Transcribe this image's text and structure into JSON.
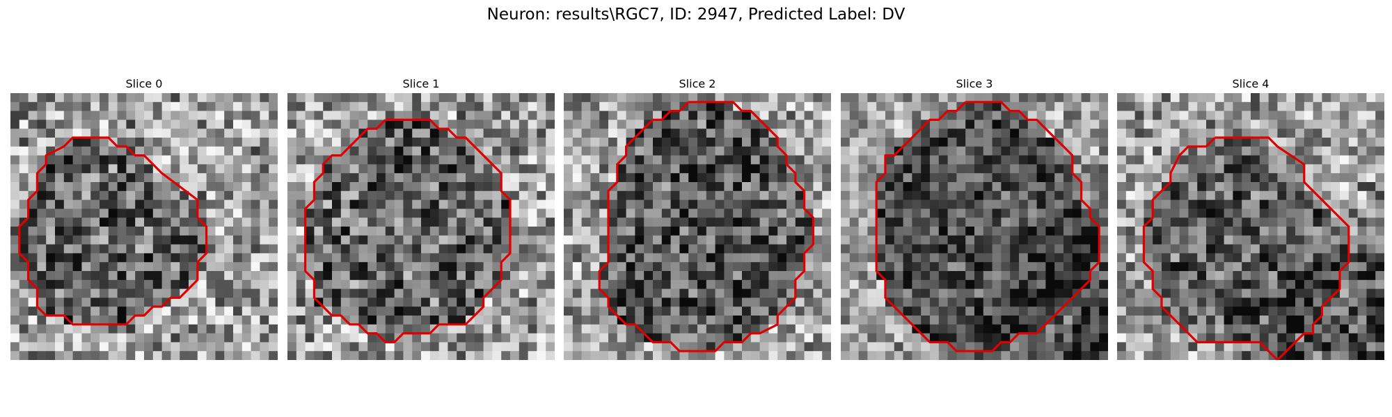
{
  "figure": {
    "title": "Neuron: results\\RGC7, ID: 2947, Predicted Label: DV"
  },
  "colors": {
    "contour": "#e00000",
    "background": "#ffffff"
  },
  "chart_data": [
    {
      "type": "heatmap",
      "title": "Slice 0",
      "grid_size": 30,
      "colormap": "gray",
      "seed": 11,
      "contrast": 0.32,
      "darkening": 0.24,
      "dark_corner": null,
      "contour": [
        [
          8,
          5
        ],
        [
          11,
          5
        ],
        [
          12,
          6
        ],
        [
          13,
          6
        ],
        [
          14,
          7
        ],
        [
          15,
          7
        ],
        [
          16,
          8
        ],
        [
          17,
          9
        ],
        [
          21,
          12
        ],
        [
          21,
          14
        ],
        [
          22,
          15
        ],
        [
          22,
          18
        ],
        [
          21,
          19
        ],
        [
          21,
          21
        ],
        [
          19,
          23
        ],
        [
          18,
          23
        ],
        [
          17,
          24
        ],
        [
          16,
          24
        ],
        [
          15,
          25
        ],
        [
          14,
          25
        ],
        [
          13,
          26
        ],
        [
          7,
          26
        ],
        [
          6,
          25
        ],
        [
          4,
          25
        ],
        [
          3,
          24
        ],
        [
          3,
          22
        ],
        [
          2,
          21
        ],
        [
          2,
          19
        ],
        [
          1,
          18
        ],
        [
          1,
          15
        ],
        [
          2,
          14
        ],
        [
          2,
          12
        ],
        [
          3,
          11
        ],
        [
          3,
          9
        ],
        [
          4,
          8
        ],
        [
          4,
          7
        ],
        [
          6,
          6
        ],
        [
          7,
          5
        ],
        [
          8,
          5
        ]
      ]
    },
    {
      "type": "heatmap",
      "title": "Slice 1",
      "grid_size": 30,
      "colormap": "gray",
      "seed": 23,
      "contrast": 0.32,
      "darkening": 0.22,
      "dark_corner": null,
      "contour": [
        [
          11,
          3
        ],
        [
          16,
          3
        ],
        [
          17,
          4
        ],
        [
          18,
          4
        ],
        [
          19,
          5
        ],
        [
          20,
          5
        ],
        [
          24,
          9
        ],
        [
          24,
          11
        ],
        [
          25,
          12
        ],
        [
          25,
          18
        ],
        [
          24,
          19
        ],
        [
          24,
          21
        ],
        [
          22,
          23
        ],
        [
          22,
          24
        ],
        [
          20,
          26
        ],
        [
          17,
          26
        ],
        [
          16,
          27
        ],
        [
          13,
          27
        ],
        [
          12,
          28
        ],
        [
          11,
          28
        ],
        [
          10,
          27
        ],
        [
          9,
          27
        ],
        [
          8,
          26
        ],
        [
          7,
          26
        ],
        [
          6,
          25
        ],
        [
          5,
          25
        ],
        [
          3,
          23
        ],
        [
          3,
          21
        ],
        [
          2,
          20
        ],
        [
          2,
          13
        ],
        [
          3,
          12
        ],
        [
          3,
          10
        ],
        [
          4,
          9
        ],
        [
          4,
          8
        ],
        [
          5,
          7
        ],
        [
          6,
          7
        ],
        [
          9,
          4
        ],
        [
          10,
          4
        ],
        [
          11,
          3
        ]
      ]
    },
    {
      "type": "heatmap",
      "title": "Slice 2",
      "grid_size": 30,
      "colormap": "gray",
      "seed": 37,
      "contrast": 0.3,
      "darkening": 0.28,
      "dark_corner": null,
      "contour": [
        [
          14,
          1
        ],
        [
          19,
          1
        ],
        [
          20,
          2
        ],
        [
          21,
          2
        ],
        [
          22,
          3
        ],
        [
          23,
          4
        ],
        [
          24,
          5
        ],
        [
          24,
          6
        ],
        [
          25,
          7
        ],
        [
          25,
          8
        ],
        [
          26,
          9
        ],
        [
          26,
          10
        ],
        [
          27,
          11
        ],
        [
          27,
          13
        ],
        [
          28,
          14
        ],
        [
          28,
          17
        ],
        [
          27,
          18
        ],
        [
          27,
          20
        ],
        [
          26,
          21
        ],
        [
          26,
          23
        ],
        [
          24,
          25
        ],
        [
          24,
          26
        ],
        [
          22,
          27
        ],
        [
          21,
          27
        ],
        [
          20,
          28
        ],
        [
          18,
          28
        ],
        [
          17,
          29
        ],
        [
          13,
          29
        ],
        [
          12,
          28
        ],
        [
          10,
          28
        ],
        [
          9,
          27
        ],
        [
          8,
          26
        ],
        [
          7,
          26
        ],
        [
          5,
          24
        ],
        [
          5,
          23
        ],
        [
          4,
          22
        ],
        [
          4,
          20
        ],
        [
          5,
          19
        ],
        [
          5,
          11
        ],
        [
          6,
          10
        ],
        [
          6,
          8
        ],
        [
          7,
          7
        ],
        [
          7,
          6
        ],
        [
          10,
          3
        ],
        [
          11,
          3
        ],
        [
          12,
          2
        ],
        [
          13,
          2
        ],
        [
          14,
          1
        ]
      ]
    },
    {
      "type": "heatmap",
      "title": "Slice 3",
      "grid_size": 30,
      "colormap": "gray",
      "seed": 53,
      "contrast": 0.25,
      "darkening": 0.3,
      "dark_corner": "bottom-right",
      "contour": [
        [
          14,
          1
        ],
        [
          18,
          1
        ],
        [
          19,
          2
        ],
        [
          20,
          2
        ],
        [
          21,
          3
        ],
        [
          22,
          3
        ],
        [
          23,
          4
        ],
        [
          24,
          5
        ],
        [
          25,
          6
        ],
        [
          26,
          7
        ],
        [
          26,
          9
        ],
        [
          27,
          10
        ],
        [
          27,
          12
        ],
        [
          28,
          13
        ],
        [
          28,
          14
        ],
        [
          29,
          15
        ],
        [
          29,
          19
        ],
        [
          28,
          20
        ],
        [
          28,
          21
        ],
        [
          26,
          23
        ],
        [
          25,
          24
        ],
        [
          24,
          25
        ],
        [
          23,
          26
        ],
        [
          22,
          27
        ],
        [
          20,
          27
        ],
        [
          19,
          28
        ],
        [
          18,
          28
        ],
        [
          17,
          29
        ],
        [
          13,
          29
        ],
        [
          12,
          28
        ],
        [
          10,
          28
        ],
        [
          9,
          27
        ],
        [
          8,
          26
        ],
        [
          7,
          25
        ],
        [
          6,
          24
        ],
        [
          5,
          23
        ],
        [
          5,
          21
        ],
        [
          4,
          20
        ],
        [
          4,
          10
        ],
        [
          5,
          9
        ],
        [
          5,
          7
        ],
        [
          6,
          7
        ],
        [
          7,
          6
        ],
        [
          8,
          5
        ],
        [
          9,
          4
        ],
        [
          10,
          3
        ],
        [
          11,
          3
        ],
        [
          12,
          2
        ],
        [
          13,
          2
        ],
        [
          14,
          1
        ]
      ]
    },
    {
      "type": "heatmap",
      "title": "Slice 4",
      "grid_size": 30,
      "colormap": "gray",
      "seed": 71,
      "contrast": 0.3,
      "darkening": 0.24,
      "dark_corner": "bottom-right",
      "contour": [
        [
          11,
          5
        ],
        [
          17,
          5
        ],
        [
          18,
          6
        ],
        [
          21,
          8
        ],
        [
          21,
          10
        ],
        [
          24,
          13
        ],
        [
          26,
          15
        ],
        [
          26,
          19
        ],
        [
          25,
          20
        ],
        [
          25,
          22
        ],
        [
          24,
          23
        ],
        [
          23,
          24
        ],
        [
          23,
          25
        ],
        [
          22,
          26
        ],
        [
          22,
          27
        ],
        [
          21,
          27
        ],
        [
          20,
          28
        ],
        [
          19,
          29
        ],
        [
          18,
          30
        ],
        [
          17,
          29
        ],
        [
          16,
          28
        ],
        [
          9,
          28
        ],
        [
          8,
          27
        ],
        [
          7,
          26
        ],
        [
          5,
          24
        ],
        [
          5,
          23
        ],
        [
          4,
          22
        ],
        [
          4,
          20
        ],
        [
          3,
          19
        ],
        [
          3,
          15
        ],
        [
          4,
          14
        ],
        [
          4,
          12
        ],
        [
          5,
          11
        ],
        [
          6,
          10
        ],
        [
          6,
          9
        ],
        [
          7,
          7
        ],
        [
          8,
          6
        ],
        [
          10,
          6
        ],
        [
          11,
          5
        ]
      ]
    }
  ]
}
